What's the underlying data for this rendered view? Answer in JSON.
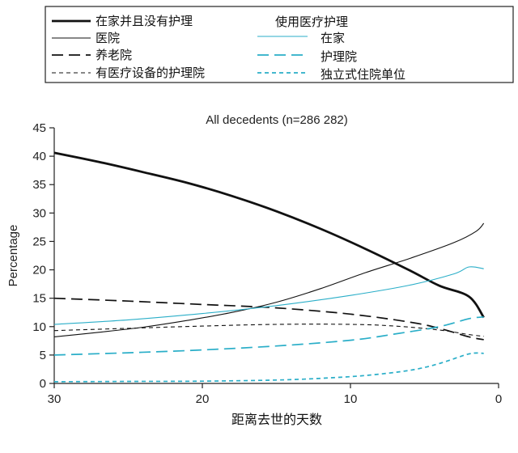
{
  "chart_data": {
    "type": "line",
    "title": "All decedents (n=286 282)",
    "xlabel": "距离去世的天数",
    "ylabel": "Percentage",
    "xlim": [
      30,
      0
    ],
    "ylim": [
      0,
      45
    ],
    "xticks": [
      30,
      20,
      10,
      0
    ],
    "yticks": [
      0,
      5,
      10,
      15,
      20,
      25,
      30,
      35,
      40,
      45
    ],
    "legend_placement": "top",
    "legend_group_title": "使用医疗护理",
    "series": [
      {
        "name": "在家并且没有护理",
        "color": "#111111",
        "dash": "solid",
        "width": "thick",
        "x": [
          30,
          27,
          24,
          21,
          18,
          15,
          12,
          9,
          6,
          4,
          2,
          1
        ],
        "y": [
          40.6,
          39.0,
          37.2,
          35.3,
          33.0,
          30.3,
          27.2,
          23.7,
          19.9,
          17.2,
          15.3,
          11.6
        ]
      },
      {
        "name": "医院",
        "color": "#111111",
        "dash": "solid",
        "width": "thin",
        "x": [
          30,
          27,
          24,
          21,
          18,
          15,
          12,
          9,
          6,
          3,
          1.5,
          1
        ],
        "y": [
          8.2,
          9.0,
          9.9,
          11.1,
          12.5,
          14.3,
          16.7,
          19.5,
          22.0,
          24.8,
          26.8,
          28.2
        ]
      },
      {
        "name": "养老院",
        "color": "#111111",
        "dash": "long",
        "width": "medium",
        "x": [
          30,
          25,
          20,
          15,
          10,
          6,
          4,
          2,
          1
        ],
        "y": [
          15.0,
          14.5,
          13.9,
          13.3,
          12.2,
          10.8,
          9.7,
          8.2,
          7.7
        ]
      },
      {
        "name": "有医疗设备的护理院",
        "color": "#111111",
        "dash": "short",
        "width": "thin",
        "x": [
          30,
          25,
          20,
          15,
          10,
          7,
          4,
          2,
          1
        ],
        "y": [
          9.3,
          9.7,
          10.1,
          10.4,
          10.4,
          10.1,
          9.4,
          8.6,
          8.3
        ]
      },
      {
        "name": "在家",
        "color": "#2aaec8",
        "dash": "solid",
        "width": "thin",
        "x": [
          30,
          25,
          20,
          15,
          10,
          6,
          3,
          2,
          1
        ],
        "y": [
          10.4,
          11.2,
          12.3,
          13.7,
          15.5,
          17.3,
          19.3,
          20.5,
          20.2
        ]
      },
      {
        "name": "护理院",
        "color": "#2aaec8",
        "dash": "long",
        "width": "medium",
        "x": [
          30,
          25,
          20,
          15,
          10,
          7,
          4,
          2,
          1
        ],
        "y": [
          5.0,
          5.4,
          5.9,
          6.6,
          7.6,
          8.7,
          10.0,
          11.4,
          11.7
        ]
      },
      {
        "name": "独立式住院单位",
        "color": "#2aaec8",
        "dash": "short",
        "width": "medium",
        "x": [
          30,
          25,
          20,
          15,
          12,
          9,
          6,
          4,
          2,
          1
        ],
        "y": [
          0.3,
          0.35,
          0.4,
          0.6,
          0.9,
          1.4,
          2.3,
          3.5,
          5.2,
          5.3
        ]
      }
    ]
  }
}
